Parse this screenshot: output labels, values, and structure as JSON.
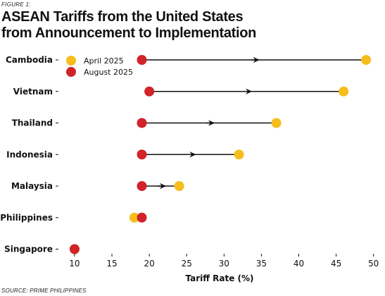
{
  "figure_label": "FIGURE 1:",
  "title_line1": "ASEAN Tariffs from the United States",
  "title_line2": "from Announcement to Implementation",
  "source": "SOURCE: PRIME PHILIPPINES",
  "colors": {
    "april": "#f6be1c",
    "august": "#d0232a",
    "arrow": "#111111"
  },
  "chart_data": {
    "type": "dumbbell",
    "title": "ASEAN Tariffs from the United States from Announcement to Implementation",
    "xlabel": "Tariff Rate (%)",
    "ylabel": "",
    "xlim": [
      8.5,
      50.5
    ],
    "xticks": [
      "10",
      "15",
      "20",
      "25",
      "30",
      "35",
      "40",
      "45",
      "50"
    ],
    "categories": [
      "Cambodia",
      "Vietnam",
      "Thailand",
      "Indonesia",
      "Malaysia",
      "Philippines",
      "Singapore"
    ],
    "series": [
      {
        "name": "April 2025",
        "values": [
          49,
          46,
          37,
          32,
          24,
          18,
          10
        ]
      },
      {
        "name": "August 2025",
        "values": [
          19,
          20,
          19,
          19,
          19,
          19,
          10
        ]
      }
    ],
    "legend": "top-left",
    "grid": false
  }
}
